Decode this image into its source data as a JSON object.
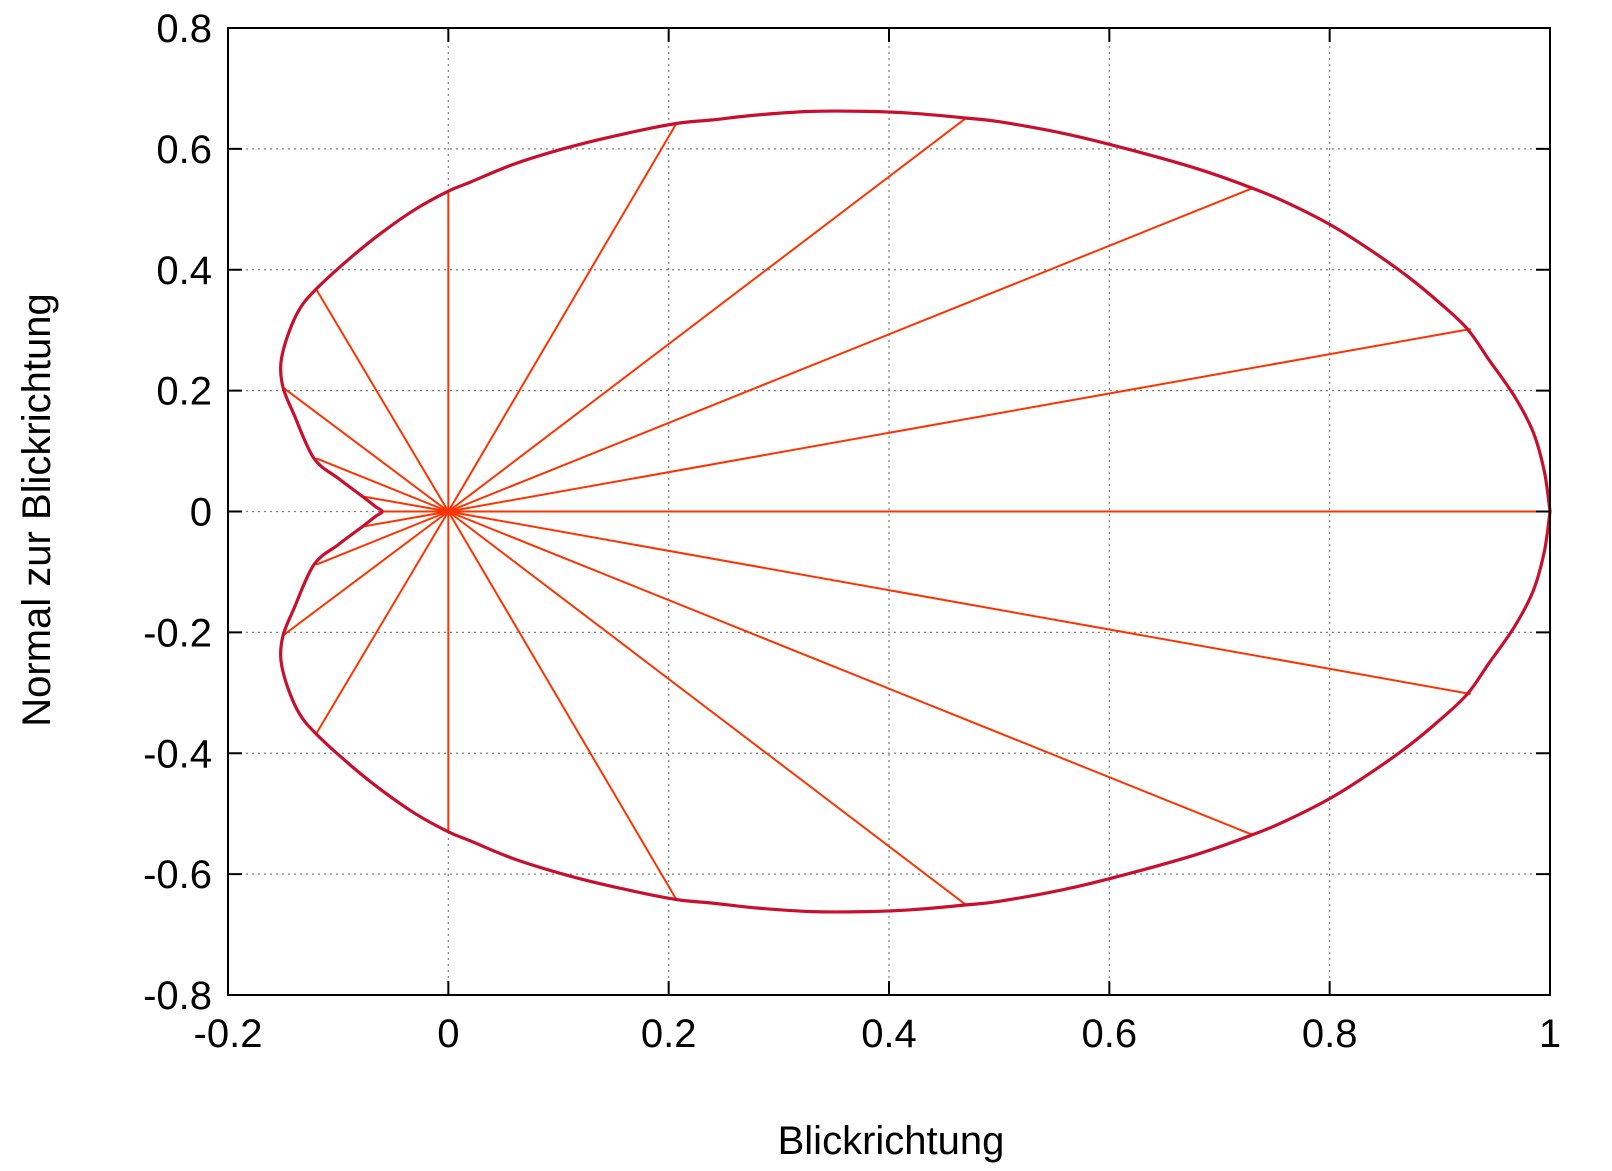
{
  "chart_data": {
    "type": "line",
    "title": "",
    "xlabel": "Blickrichtung",
    "ylabel": "Normal zur Blickrichtung",
    "xlim": [
      -0.2,
      1.0
    ],
    "ylim": [
      -0.8,
      0.8
    ],
    "xticks": [
      -0.2,
      0,
      0.2,
      0.4,
      0.6,
      0.8,
      1
    ],
    "xtick_labels": [
      "-0.2",
      "0",
      "0.2",
      "0.4",
      "0.6",
      "0.8",
      "1"
    ],
    "yticks": [
      -0.8,
      -0.6,
      -0.4,
      -0.2,
      0,
      0.2,
      0.4,
      0.6,
      0.8
    ],
    "ytick_labels": [
      "-0.8",
      "-0.6",
      "-0.4",
      "-0.2",
      "0",
      "0.2",
      "0.4",
      "0.6",
      "0.8"
    ],
    "grid": true,
    "legend": "none",
    "colors": {
      "outline": "#c8102e",
      "rays": "#ff3300",
      "grid": "#808080",
      "axes": "#000000"
    },
    "series": [
      {
        "kind": "closed-curve",
        "x": [
          1.0,
          0.9943,
          0.9773,
          0.9499,
          0.9128,
          0.8675,
          0.8152,
          0.7575,
          0.6958,
          0.6318,
          0.567,
          0.5026,
          0.4401,
          0.3803,
          0.3242,
          0.2722,
          0.2247,
          0.1817,
          0.143,
          0.1082,
          0.0769,
          0.0487,
          0.0229,
          -0.0008,
          -0.0228,
          -0.0434,
          -0.0626,
          -0.0805,
          -0.0967,
          -0.1108,
          -0.1225,
          -0.1314,
          -0.1369,
          -0.1386,
          -0.1362,
          -0.1295,
          -0.1183,
          -0.1026,
          -0.0825,
          -0.0584,
          -0.06,
          -0.0584,
          -0.0825,
          -0.1026,
          -0.1183,
          -0.1295,
          -0.1362,
          -0.1386,
          -0.1369,
          -0.1314,
          -0.1225,
          -0.1108,
          -0.0967,
          -0.0805,
          -0.0626,
          -0.0434,
          -0.0228,
          -0.0008,
          0.0229,
          0.0487,
          0.0769,
          0.1082,
          0.143,
          0.1817,
          0.2247,
          0.2722,
          0.3242,
          0.3803,
          0.4401,
          0.5026,
          0.567,
          0.6318,
          0.6958,
          0.7575,
          0.8152,
          0.8675,
          0.9128,
          0.9499,
          0.9773,
          0.9943,
          1.0
        ],
        "y": [
          0.0,
          0.087,
          0.1723,
          0.2545,
          0.3322,
          0.4045,
          0.4707,
          0.5303,
          0.5838,
          0.6301,
          0.6649,
          0.6641,
          0.6604,
          0.6523,
          0.6395,
          0.6222,
          0.6004,
          0.5741,
          0.5437,
          0.5095,
          0.4721,
          0.432,
          0.3897,
          0.3455,
          0.2998,
          0.2528,
          0.2043,
          0.154,
          0.1013,
          0.0457,
          -0.0,
          0.0,
          0.021,
          0.03,
          0.005,
          0.0,
          0.0,
          0.0,
          0.0,
          0.0,
          0.0,
          -0.0,
          -0.0,
          -0.0,
          -0.0,
          -0.005,
          -0.03,
          -0.021,
          0.0,
          -0.0,
          -0.0457,
          -0.1013,
          -0.154,
          -0.2043,
          -0.2528,
          -0.2998,
          -0.3455,
          -0.3897,
          -0.432,
          -0.4721,
          -0.5095,
          -0.5437,
          -0.5741,
          -0.6004,
          -0.6222,
          -0.6395,
          -0.6523,
          -0.6604,
          -0.6641,
          -0.6649,
          -0.6301,
          -0.5838,
          -0.5303,
          -0.4707,
          -0.4045,
          -0.3322,
          -0.2545,
          -0.1723,
          -0.087,
          0.0,
          0.0
        ]
      }
    ],
    "outline_points": [
      [
        1.0,
        0.0
      ],
      [
        0.995,
        0.065
      ],
      [
        0.985,
        0.13
      ],
      [
        0.968,
        0.19
      ],
      [
        0.945,
        0.25
      ],
      [
        0.925,
        0.302
      ],
      [
        0.9,
        0.345
      ],
      [
        0.87,
        0.39
      ],
      [
        0.835,
        0.435
      ],
      [
        0.8,
        0.475
      ],
      [
        0.76,
        0.512
      ],
      [
        0.73,
        0.535
      ],
      [
        0.68,
        0.567
      ],
      [
        0.62,
        0.598
      ],
      [
        0.56,
        0.625
      ],
      [
        0.5,
        0.645
      ],
      [
        0.47,
        0.651
      ],
      [
        0.42,
        0.659
      ],
      [
        0.38,
        0.662
      ],
      [
        0.33,
        0.662
      ],
      [
        0.28,
        0.656
      ],
      [
        0.24,
        0.648
      ],
      [
        0.207,
        0.642
      ],
      [
        0.16,
        0.625
      ],
      [
        0.11,
        0.603
      ],
      [
        0.06,
        0.575
      ],
      [
        0.02,
        0.545
      ],
      [
        0.0,
        0.53
      ],
      [
        -0.03,
        0.5
      ],
      [
        -0.06,
        0.462
      ],
      [
        -0.09,
        0.418
      ],
      [
        -0.12,
        0.368
      ],
      [
        -0.135,
        0.335
      ],
      [
        -0.146,
        0.29
      ],
      [
        -0.152,
        0.245
      ],
      [
        -0.15,
        0.205
      ],
      [
        -0.14,
        0.16
      ],
      [
        -0.122,
        0.088
      ],
      [
        -0.1,
        0.055
      ],
      [
        -0.078,
        0.025
      ],
      [
        -0.066,
        0.008
      ],
      [
        -0.06,
        0.0
      ],
      [
        -0.066,
        -0.008
      ],
      [
        -0.078,
        -0.025
      ],
      [
        -0.1,
        -0.055
      ],
      [
        -0.122,
        -0.088
      ],
      [
        -0.14,
        -0.16
      ],
      [
        -0.15,
        -0.205
      ],
      [
        -0.152,
        -0.245
      ],
      [
        -0.146,
        -0.29
      ],
      [
        -0.135,
        -0.335
      ],
      [
        -0.12,
        -0.368
      ],
      [
        -0.09,
        -0.418
      ],
      [
        -0.06,
        -0.462
      ],
      [
        -0.03,
        -0.5
      ],
      [
        0.0,
        -0.53
      ],
      [
        0.02,
        -0.545
      ],
      [
        0.06,
        -0.575
      ],
      [
        0.11,
        -0.603
      ],
      [
        0.16,
        -0.625
      ],
      [
        0.207,
        -0.642
      ],
      [
        0.24,
        -0.648
      ],
      [
        0.28,
        -0.656
      ],
      [
        0.33,
        -0.662
      ],
      [
        0.38,
        -0.662
      ],
      [
        0.42,
        -0.659
      ],
      [
        0.47,
        -0.651
      ],
      [
        0.5,
        -0.645
      ],
      [
        0.56,
        -0.625
      ],
      [
        0.62,
        -0.598
      ],
      [
        0.68,
        -0.567
      ],
      [
        0.73,
        -0.535
      ],
      [
        0.76,
        -0.512
      ],
      [
        0.8,
        -0.475
      ],
      [
        0.835,
        -0.435
      ],
      [
        0.87,
        -0.39
      ],
      [
        0.9,
        -0.345
      ],
      [
        0.925,
        -0.302
      ],
      [
        0.945,
        -0.25
      ],
      [
        0.968,
        -0.19
      ],
      [
        0.985,
        -0.13
      ],
      [
        0.995,
        -0.065
      ],
      [
        1.0,
        0.0
      ]
    ],
    "rays": [
      [
        1.0,
        0.0
      ],
      [
        0.928,
        0.302
      ],
      [
        0.73,
        0.535
      ],
      [
        0.47,
        0.651
      ],
      [
        0.207,
        0.642
      ],
      [
        0.0,
        0.53
      ],
      [
        -0.12,
        0.368
      ],
      [
        -0.15,
        0.205
      ],
      [
        -0.12,
        0.088
      ],
      [
        -0.078,
        0.025
      ],
      [
        -0.06,
        0.0
      ],
      [
        -0.078,
        -0.025
      ],
      [
        -0.12,
        -0.088
      ],
      [
        -0.15,
        -0.205
      ],
      [
        -0.12,
        -0.368
      ],
      [
        0.0,
        -0.53
      ],
      [
        0.207,
        -0.642
      ],
      [
        0.47,
        -0.651
      ],
      [
        0.73,
        -0.535
      ],
      [
        0.928,
        -0.302
      ]
    ]
  }
}
